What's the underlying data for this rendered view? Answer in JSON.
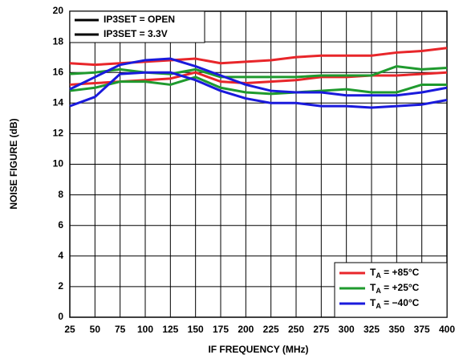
{
  "chart_data": {
    "type": "line",
    "xlabel": "IF FREQUENCY (MHz)",
    "ylabel": "NOISE FIGURE (dB)",
    "x": [
      25,
      50,
      75,
      100,
      125,
      150,
      175,
      200,
      225,
      250,
      275,
      300,
      325,
      350,
      375,
      400
    ],
    "settings": [
      "IP3SET = OPEN",
      "IP3SET = 3.3V"
    ],
    "settings_color": "#000000",
    "series": [
      {
        "name": "TA = +85°C",
        "color": "#e8262a",
        "values": [
          [
            16.6,
            16.5,
            16.6,
            16.7,
            16.8,
            16.9,
            16.6,
            16.7,
            16.8,
            17.0,
            17.1,
            17.1,
            17.1,
            17.3,
            17.4,
            17.6
          ],
          [
            15.2,
            15.3,
            15.4,
            15.5,
            15.6,
            16.0,
            15.4,
            15.3,
            15.4,
            15.5,
            15.7,
            15.7,
            15.8,
            15.8,
            15.9,
            16.0
          ]
        ]
      },
      {
        "name": "TA = +25°C",
        "color": "#1f9a2e",
        "values": [
          [
            15.9,
            16.0,
            16.2,
            16.0,
            15.9,
            16.2,
            15.7,
            15.7,
            15.7,
            15.7,
            15.8,
            15.8,
            15.8,
            16.4,
            16.2,
            16.3
          ],
          [
            14.8,
            15.0,
            15.4,
            15.4,
            15.2,
            15.7,
            15.0,
            14.7,
            14.6,
            14.7,
            14.8,
            14.9,
            14.7,
            14.7,
            15.2,
            15.2
          ]
        ]
      },
      {
        "name": "TA = −40°C",
        "color": "#1a1adc",
        "values": [
          [
            14.9,
            15.7,
            16.5,
            16.8,
            16.9,
            16.4,
            15.8,
            15.2,
            14.8,
            14.7,
            14.7,
            14.5,
            14.5,
            14.5,
            14.7,
            15.0
          ],
          [
            13.8,
            14.4,
            15.9,
            16.0,
            16.0,
            15.5,
            14.8,
            14.3,
            14.0,
            14.0,
            13.8,
            13.8,
            13.7,
            13.8,
            13.9,
            14.2
          ]
        ]
      }
    ],
    "xlim": [
      25,
      400
    ],
    "xticks": [
      25,
      50,
      75,
      100,
      125,
      150,
      175,
      200,
      225,
      250,
      275,
      300,
      325,
      350,
      375,
      400
    ],
    "ylim": [
      0,
      20
    ],
    "yticks": [
      0,
      2,
      4,
      6,
      8,
      10,
      12,
      14,
      16,
      18,
      20
    ],
    "grid": true
  }
}
